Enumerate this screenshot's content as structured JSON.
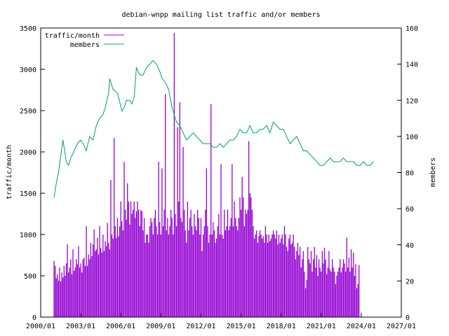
{
  "chart_data": {
    "type": "bar",
    "title": "debian-wnpp mailing list traffic and/or members",
    "ylabel": "traffic/month",
    "y2label": "members",
    "xlabel": "",
    "x_tick_labels": [
      "2000/01",
      "2003/01",
      "2006/01",
      "2009/01",
      "2012/01",
      "2015/01",
      "2018/01",
      "2021/01",
      "2024/01",
      "2027/01"
    ],
    "x_range": [
      "2000-01",
      "2027-01"
    ],
    "ylim": [
      0,
      3500
    ],
    "y_ticks": [
      0,
      500,
      1000,
      1500,
      2000,
      2500,
      3000,
      3500
    ],
    "y2lim": [
      0,
      160
    ],
    "y2_ticks": [
      0,
      20,
      40,
      60,
      80,
      100,
      120,
      140,
      160
    ],
    "grid": false,
    "legend_position": "top-left",
    "colors": {
      "traffic": "#9400d3",
      "members": "#009e73"
    },
    "series": [
      {
        "name": "traffic/month",
        "type": "bar",
        "axis": "left",
        "x_start": "2001-01",
        "interval": "month",
        "values": [
          680,
          620,
          470,
          520,
          440,
          600,
          430,
          540,
          480,
          620,
          500,
          650,
          880,
          540,
          600,
          700,
          520,
          820,
          560,
          600,
          700,
          640,
          860,
          600,
          650,
          540,
          700,
          720,
          620,
          1100,
          620,
          760,
          700,
          900,
          740,
          880,
          1060,
          800,
          820,
          960,
          760,
          1100,
          840,
          780,
          1000,
          800,
          920,
          860,
          1140,
          900,
          820,
          1660,
          1000,
          950,
          2170,
          1100,
          960,
          1200,
          980,
          1100,
          1400,
          1160,
          1050,
          1880,
          1300,
          1180,
          1620,
          1400,
          1120,
          1400,
          1250,
          1300,
          1400,
          1200,
          1280,
          1400,
          1300,
          1100,
          1300,
          1280,
          1050,
          1200,
          900,
          1000,
          1000,
          900,
          1100,
          1200,
          1150,
          1000,
          1200,
          1300,
          1100,
          1000,
          1880,
          1150,
          1000,
          1800,
          1100,
          1300,
          2700,
          1050,
          1200,
          1000,
          1100,
          1300,
          1200,
          1000,
          3440,
          1250,
          1100,
          2300,
          1400,
          2600,
          1200,
          1150,
          2060,
          1300,
          1050,
          900,
          1400,
          1050,
          1200,
          1300,
          1100,
          1000,
          1250,
          1100,
          1050,
          1300,
          1200,
          1000,
          1200,
          800,
          1000,
          1100,
          1300,
          1800,
          1100,
          900,
          1000,
          2580,
          1000,
          1150,
          1050,
          900,
          950,
          1100,
          1250,
          1000,
          1850,
          1000,
          950,
          1300,
          1050,
          1100,
          1300,
          1050,
          1100,
          1200,
          1850,
          1100,
          1400,
          1200,
          1100,
          1050,
          1200,
          1450,
          1300,
          1700,
          1450,
          1100,
          1300,
          1250,
          1300,
          2130,
          1500,
          1450,
          1300,
          1100,
          950,
          1000,
          1050,
          900,
          980,
          1050,
          1000,
          950,
          980,
          900,
          1100,
          1000,
          900,
          1000,
          920,
          950,
          1000,
          1050,
          1000,
          950,
          1050,
          880,
          1000,
          900,
          950,
          1000,
          880,
          1100,
          1000,
          850,
          800,
          950,
          1000,
          880,
          900,
          1000,
          850,
          700,
          800,
          900,
          750,
          850,
          600,
          700,
          800,
          550,
          350,
          450,
          850,
          700,
          650,
          800,
          550,
          700,
          850,
          600,
          750,
          500,
          700,
          600,
          550,
          800,
          650,
          840,
          700,
          520,
          600,
          800,
          580,
          550,
          700,
          600,
          550,
          400,
          500,
          550,
          600,
          700,
          540,
          600,
          700,
          650,
          550,
          960,
          600,
          720,
          550,
          820,
          600,
          780,
          500,
          640,
          350,
          400,
          630
        ]
      },
      {
        "name": "members",
        "type": "line",
        "axis": "right",
        "x": [
          "2001-01",
          "2001-03",
          "2001-05",
          "2001-09",
          "2001-12",
          "2002-02",
          "2002-04",
          "2002-07",
          "2002-10",
          "2003-01",
          "2003-04",
          "2003-06",
          "2003-09",
          "2003-12",
          "2004-03",
          "2004-06",
          "2004-09",
          "2004-11",
          "2005-02",
          "2005-03",
          "2005-06",
          "2005-10",
          "2006-02",
          "2006-04",
          "2006-06",
          "2006-09",
          "2006-11",
          "2007-01",
          "2007-03",
          "2007-06",
          "2007-09",
          "2007-12",
          "2008-03",
          "2008-06",
          "2008-09",
          "2008-12",
          "2009-02",
          "2009-05",
          "2009-08",
          "2009-11",
          "2010-03",
          "2010-06",
          "2010-09",
          "2010-12",
          "2011-03",
          "2011-06",
          "2011-09",
          "2011-12",
          "2012-03",
          "2012-06",
          "2012-09",
          "2012-12",
          "2013-03",
          "2013-06",
          "2013-09",
          "2013-12",
          "2014-03",
          "2014-06",
          "2014-09",
          "2014-12",
          "2015-03",
          "2015-06",
          "2015-09",
          "2015-12",
          "2016-03",
          "2016-06",
          "2016-09",
          "2016-12",
          "2017-03",
          "2017-06",
          "2017-09",
          "2017-12",
          "2018-03",
          "2018-06",
          "2018-09",
          "2018-12",
          "2019-03",
          "2019-06",
          "2019-09",
          "2019-12",
          "2020-03",
          "2020-06",
          "2020-09",
          "2020-12",
          "2021-03",
          "2021-06",
          "2021-09",
          "2021-12",
          "2022-03",
          "2022-06",
          "2022-09",
          "2022-12",
          "2023-03",
          "2023-06",
          "2023-09",
          "2023-12",
          "2024-03",
          "2024-06",
          "2024-09",
          "2024-12"
        ],
        "values": [
          66,
          74,
          80,
          98,
          86,
          84,
          88,
          92,
          96,
          98,
          95,
          92,
          100,
          98,
          106,
          110,
          112,
          116,
          124,
          132,
          126,
          124,
          114,
          116,
          120,
          120,
          118,
          122,
          138,
          134,
          134,
          138,
          140,
          142,
          140,
          136,
          132,
          130,
          126,
          116,
          108,
          106,
          102,
          98,
          100,
          102,
          100,
          98,
          96,
          96,
          96,
          94,
          94,
          96,
          94,
          96,
          98,
          98,
          100,
          104,
          102,
          102,
          106,
          102,
          102,
          104,
          104,
          106,
          102,
          108,
          106,
          104,
          104,
          100,
          96,
          98,
          100,
          96,
          92,
          92,
          90,
          88,
          86,
          84,
          84,
          86,
          88,
          86,
          86,
          86,
          88,
          86,
          86,
          86,
          84,
          84,
          86,
          84,
          84,
          86
        ]
      }
    ]
  }
}
